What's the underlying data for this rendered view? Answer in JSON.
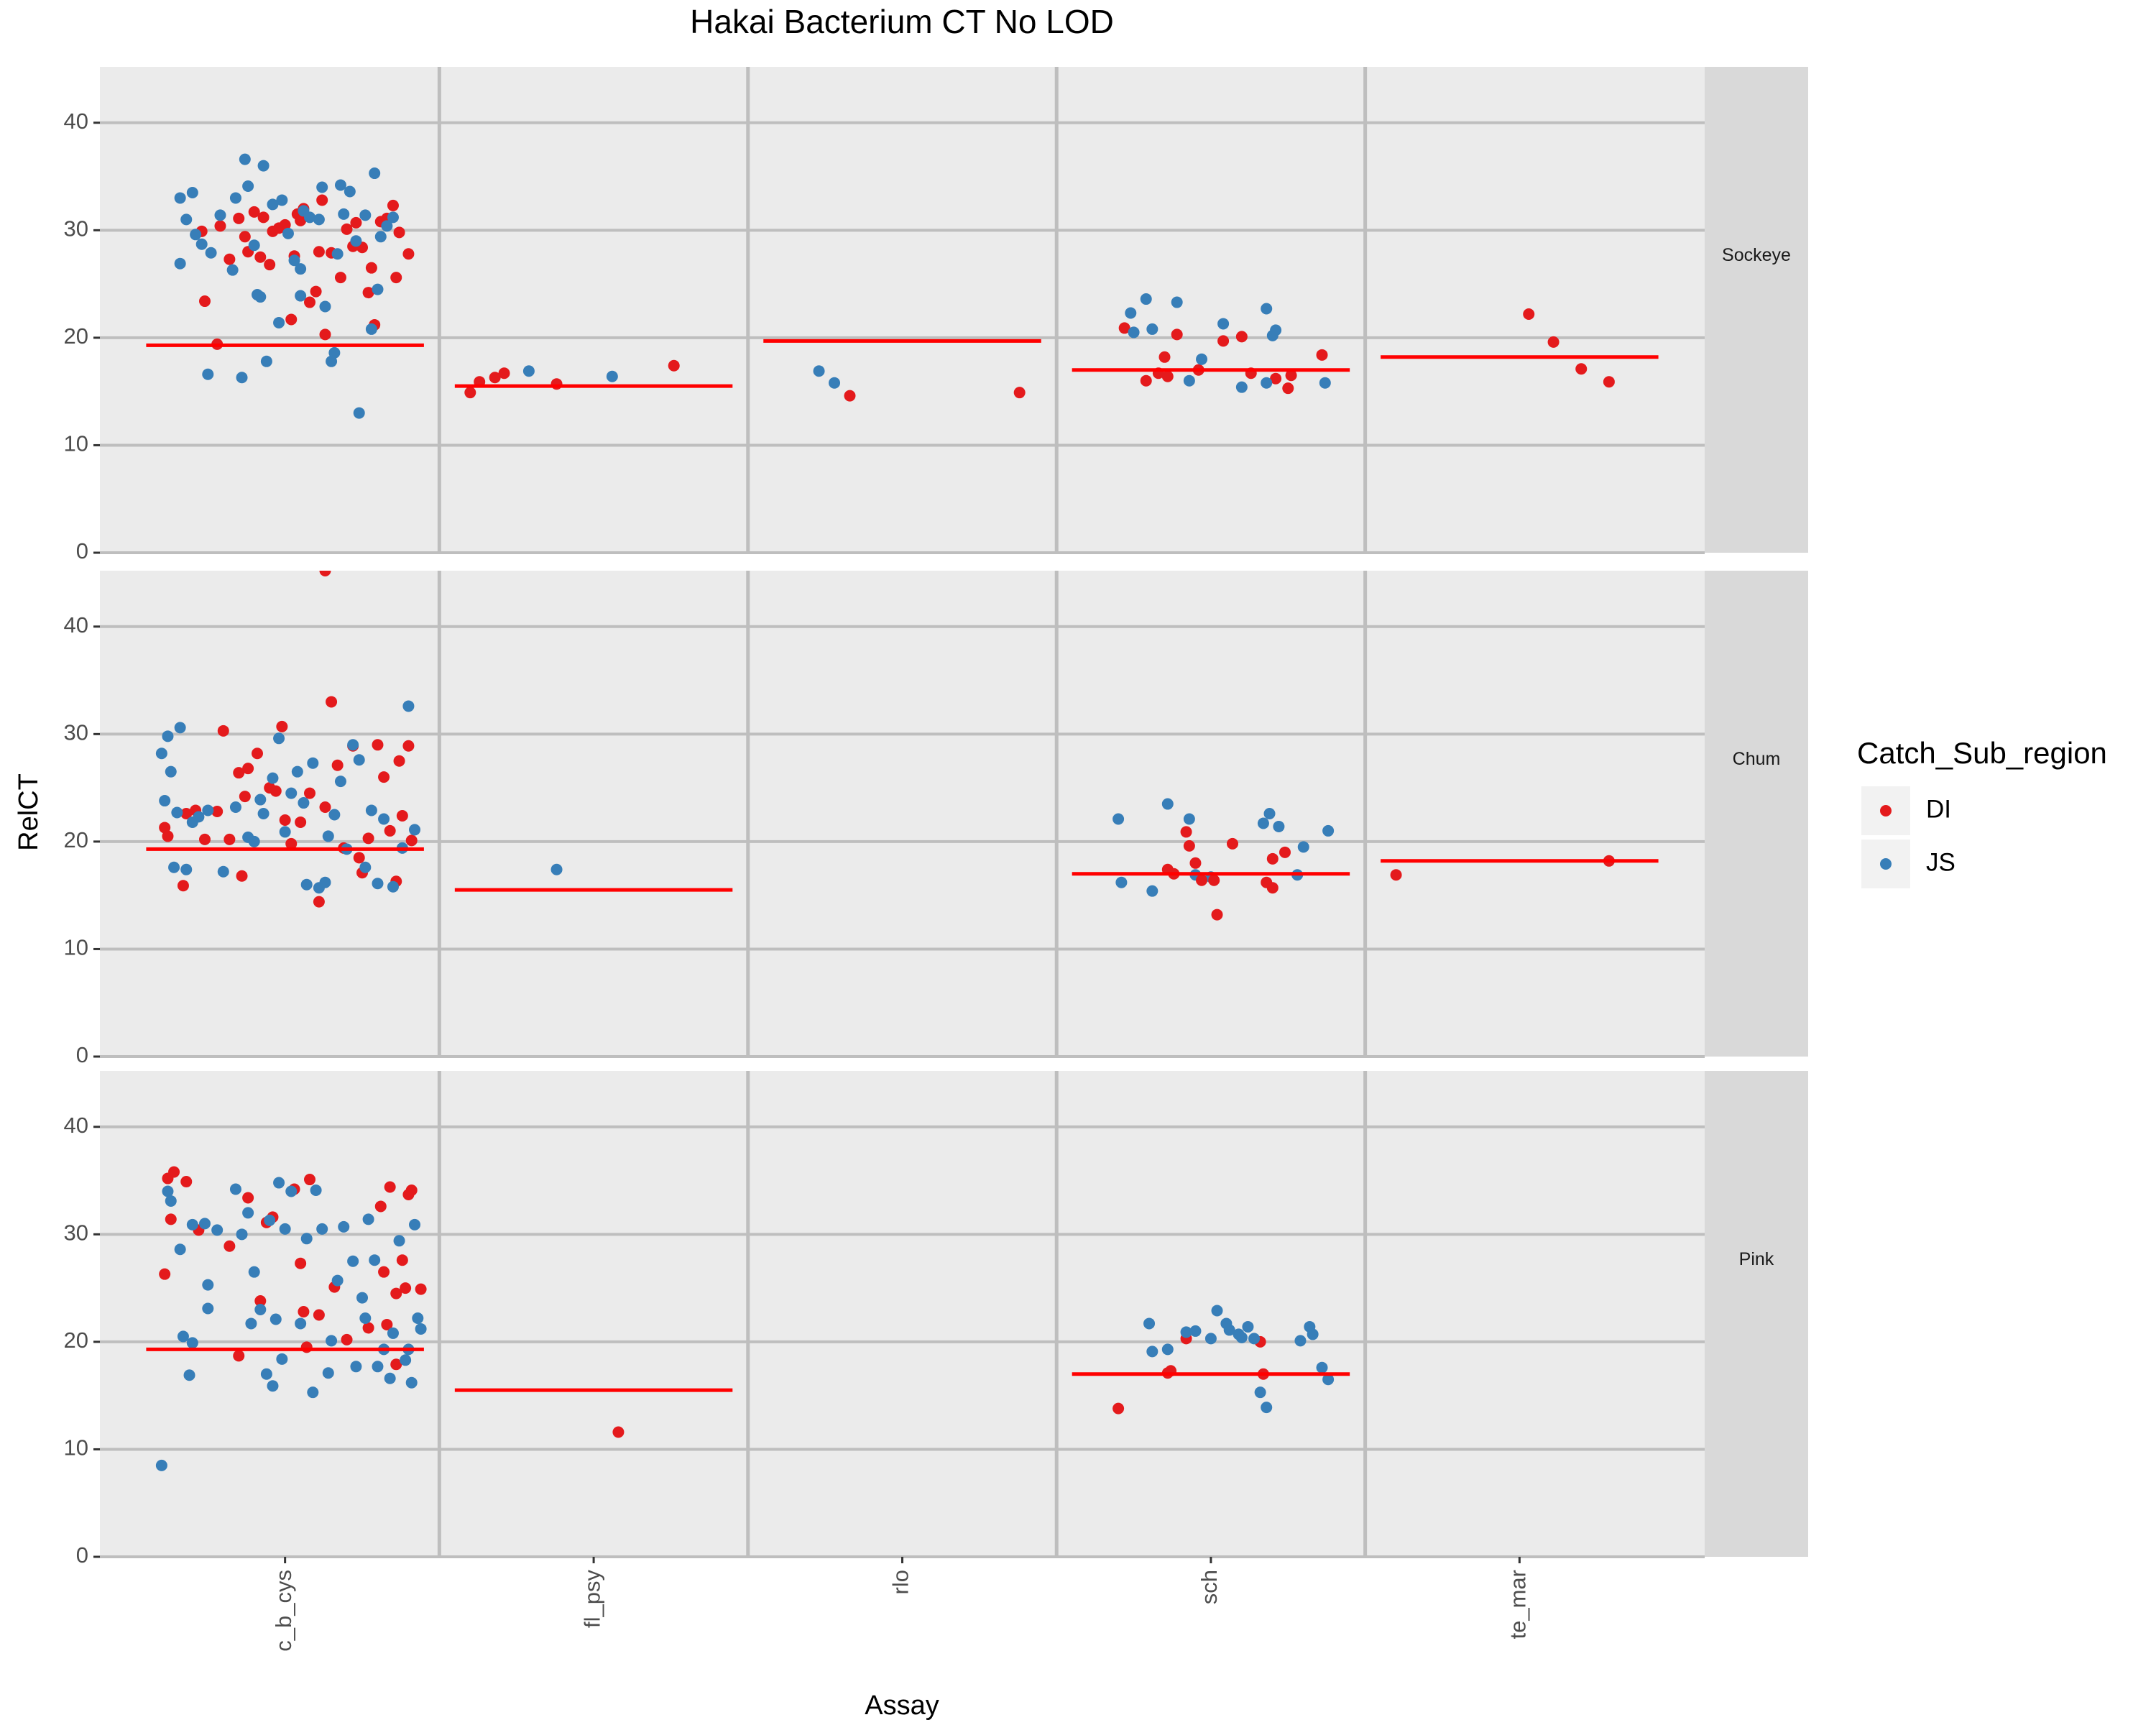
{
  "figure": {
    "title": "Hakai Bacterium CT No LOD",
    "x_label": "Assay",
    "y_label": "RelCT",
    "legend_title": "Catch_Sub_region",
    "legend": [
      {
        "name": "DI",
        "color": "#e41a1c"
      },
      {
        "name": "JS",
        "color": "#377eb8"
      }
    ],
    "categories": [
      "c_b_cys",
      "fl_psy",
      "rlo",
      "sch",
      "te_mar"
    ],
    "xlim": [
      0.4,
      5.6
    ],
    "median_color": "#ff0000"
  },
  "chart_data": [
    {
      "type": "scatter",
      "facet": "Sockeye",
      "ylim": [
        0,
        45.2
      ],
      "yticks": [
        0,
        10,
        20,
        30,
        40
      ],
      "medians": [
        19.3,
        15.5,
        19.7,
        17.0,
        18.2
      ],
      "series": [
        {
          "x": [
            0.73,
            0.74,
            0.78,
            0.85,
            0.88,
            0.9,
            0.92,
            0.95,
            0.98,
            1.0,
            1.02,
            1.03,
            1.05,
            1.06,
            1.08,
            1.1,
            1.12,
            1.13,
            1.15,
            1.18,
            1.2,
            1.22,
            1.25,
            1.27,
            1.28,
            1.29,
            1.31,
            1.33,
            1.35,
            1.36,
            1.37,
            1.4,
            0.82,
            0.87,
            0.96,
            1.04,
            1.11,
            1.23,
            0.79,
            0.93,
            1.6,
            1.63,
            1.68,
            1.71,
            1.88,
            2.26,
            2.83,
            3.38,
            3.72,
            3.79,
            3.83,
            3.85,
            3.86,
            3.89,
            3.96,
            4.04,
            4.1,
            4.13,
            4.21,
            4.25,
            4.26,
            4.36,
            5.03,
            5.11,
            5.2,
            5.29
          ],
          "values": [
            29.9,
            23.4,
            19.4,
            31.1,
            28.0,
            31.7,
            27.5,
            26.8,
            30.2,
            30.5,
            21.7,
            27.6,
            30.9,
            32.0,
            23.3,
            24.3,
            32.8,
            20.3,
            27.9,
            25.6,
            30.1,
            28.5,
            28.4,
            24.2,
            26.5,
            21.2,
            30.8,
            31.1,
            32.3,
            25.6,
            29.8,
            27.8,
            27.3,
            29.4,
            29.9,
            31.5,
            28.0,
            30.7,
            30.4,
            31.2,
            14.9,
            15.9,
            16.3,
            16.7,
            15.7,
            17.4,
            14.6,
            14.9,
            20.9,
            16.0,
            16.7,
            18.2,
            16.4,
            20.3,
            17.0,
            19.7,
            20.1,
            16.7,
            16.2,
            15.3,
            16.5,
            18.4,
            22.2,
            19.6,
            17.1,
            15.9
          ]
        },
        {
          "x": [
            0.66,
            0.66,
            0.68,
            0.71,
            0.73,
            0.75,
            0.76,
            0.79,
            0.83,
            0.84,
            0.86,
            0.88,
            0.9,
            0.91,
            0.92,
            0.93,
            0.94,
            0.96,
            0.98,
            0.99,
            1.01,
            1.03,
            1.05,
            1.06,
            1.08,
            1.11,
            1.12,
            1.13,
            1.15,
            1.16,
            1.17,
            1.19,
            1.21,
            1.23,
            1.24,
            1.26,
            1.28,
            1.29,
            1.3,
            1.31,
            1.33,
            1.35,
            0.87,
            0.7,
            1.18,
            1.05,
            1.79,
            2.06,
            2.73,
            2.78,
            3.74,
            3.75,
            3.79,
            3.81,
            3.89,
            3.93,
            3.97,
            4.04,
            4.1,
            4.18,
            4.2,
            4.21,
            4.18,
            4.37
          ],
          "values": [
            26.9,
            33.0,
            31.0,
            29.6,
            28.7,
            16.6,
            27.9,
            31.4,
            26.3,
            33.0,
            16.3,
            34.1,
            28.6,
            24.0,
            23.8,
            36.0,
            17.8,
            32.4,
            21.4,
            32.8,
            29.7,
            27.2,
            26.4,
            31.8,
            31.2,
            31.0,
            34.0,
            22.9,
            17.8,
            18.6,
            27.8,
            31.5,
            33.6,
            29.0,
            13.0,
            31.4,
            20.8,
            35.3,
            24.5,
            29.4,
            30.4,
            31.2,
            36.6,
            33.5,
            34.2,
            23.9,
            16.9,
            16.4,
            16.9,
            15.8,
            22.3,
            20.5,
            23.6,
            20.8,
            23.3,
            16.0,
            18.0,
            21.3,
            15.4,
            22.7,
            20.2,
            20.7,
            15.8,
            15.8
          ]
        }
      ]
    },
    {
      "type": "scatter",
      "facet": "Chum",
      "ylim": [
        0,
        45.2
      ],
      "yticks": [
        0,
        10,
        20,
        30,
        40
      ],
      "medians": [
        19.3,
        15.5,
        null,
        17.0,
        18.2
      ],
      "series": [
        {
          "x": [
            0.61,
            0.62,
            0.68,
            0.67,
            0.71,
            0.74,
            0.8,
            0.82,
            0.85,
            0.86,
            0.87,
            0.88,
            0.91,
            0.95,
            0.97,
            0.99,
            1.02,
            1.05,
            1.08,
            1.11,
            1.13,
            1.15,
            1.17,
            1.19,
            1.22,
            1.25,
            1.27,
            1.3,
            1.32,
            1.34,
            1.37,
            1.38,
            1.36,
            1.4,
            1.41,
            1.13,
            1.0,
            0.78,
            1.24
          ],
          "values": [
            21.3,
            20.5,
            22.6,
            15.9,
            22.9,
            20.2,
            30.3,
            20.2,
            26.4,
            16.8,
            24.2,
            26.8,
            28.2,
            25.0,
            24.7,
            30.7,
            19.8,
            21.8,
            24.5,
            14.4,
            23.2,
            33.0,
            27.1,
            19.4,
            28.9,
            17.1,
            20.3,
            29.0,
            26.0,
            21.0,
            27.5,
            22.4,
            16.3,
            28.9,
            20.1,
            45.2,
            22.0,
            22.8,
            18.5
          ]
        },
        {
          "x": [
            0.6,
            0.61,
            0.62,
            0.63,
            0.64,
            0.65,
            0.66,
            0.68,
            0.7,
            0.72,
            0.75,
            0.8,
            0.84,
            0.88,
            0.9,
            0.93,
            0.96,
            0.98,
            1.0,
            1.02,
            1.04,
            1.06,
            1.07,
            1.09,
            1.11,
            1.13,
            1.16,
            1.18,
            1.2,
            1.22,
            1.24,
            1.26,
            1.28,
            1.3,
            1.32,
            1.35,
            1.38,
            1.4,
            1.42,
            0.92,
            1.14,
            1.88,
            3.7,
            3.71,
            3.81,
            3.86,
            3.93,
            3.95,
            4.0,
            4.17,
            4.19,
            4.22,
            4.28,
            4.3,
            4.38
          ],
          "values": [
            28.2,
            23.8,
            29.8,
            26.5,
            17.6,
            22.7,
            30.6,
            17.4,
            21.8,
            22.3,
            22.9,
            17.2,
            23.2,
            20.4,
            20.0,
            22.6,
            25.9,
            29.6,
            20.9,
            24.5,
            26.5,
            23.6,
            16.0,
            27.3,
            15.7,
            16.2,
            22.5,
            25.6,
            19.3,
            29.0,
            27.6,
            17.6,
            22.9,
            16.1,
            22.1,
            15.8,
            19.4,
            32.6,
            21.1,
            23.9,
            20.5,
            17.4,
            22.1,
            16.2,
            15.4,
            23.5,
            22.1,
            16.9,
            16.7,
            21.7,
            22.6,
            21.4,
            16.9,
            19.5,
            21.0
          ]
        },
        {
          "x": [
            3.92,
            3.93,
            3.95,
            3.86,
            3.88,
            3.97,
            4.01,
            4.02,
            4.07,
            4.18,
            4.2,
            4.2,
            4.24,
            4.6,
            5.29
          ],
          "values": [
            20.9,
            19.6,
            18.0,
            17.4,
            17.0,
            16.4,
            16.4,
            13.2,
            19.8,
            16.2,
            18.4,
            15.7,
            19.0,
            16.9,
            18.2
          ],
          "group": 0
        }
      ]
    },
    {
      "type": "scatter",
      "facet": "Pink",
      "ylim": [
        0,
        45.2
      ],
      "yticks": [
        0,
        10,
        20,
        30,
        40
      ],
      "medians": [
        19.3,
        15.5,
        null,
        17.0,
        null
      ],
      "series": [
        {
          "x": [
            0.61,
            0.62,
            0.63,
            0.64,
            0.68,
            0.72,
            0.82,
            0.85,
            0.88,
            0.92,
            0.94,
            0.96,
            1.03,
            1.06,
            1.07,
            1.08,
            1.11,
            1.16,
            1.2,
            1.27,
            1.31,
            1.32,
            1.34,
            1.33,
            1.36,
            1.38,
            1.39,
            1.4,
            1.41,
            1.44,
            1.36,
            1.05,
            2.08,
            3.7,
            3.87,
            3.86,
            3.92,
            4.16,
            4.17
          ],
          "values": [
            26.3,
            35.2,
            31.4,
            35.8,
            34.9,
            30.4,
            28.9,
            18.7,
            33.4,
            23.8,
            31.1,
            31.6,
            34.2,
            22.8,
            19.5,
            35.1,
            22.5,
            25.1,
            20.2,
            21.3,
            32.6,
            26.5,
            34.4,
            21.6,
            24.5,
            27.6,
            25.0,
            33.7,
            34.1,
            24.9,
            17.9,
            27.3,
            11.6,
            13.8,
            17.3,
            17.1,
            20.3,
            20.0,
            17.0
          ]
        },
        {
          "x": [
            0.6,
            0.62,
            0.63,
            0.66,
            0.67,
            0.69,
            0.7,
            0.7,
            0.74,
            0.75,
            0.75,
            0.78,
            0.84,
            0.86,
            0.88,
            0.89,
            0.92,
            0.94,
            0.96,
            0.97,
            0.98,
            0.99,
            1.0,
            1.02,
            1.05,
            1.07,
            1.09,
            1.12,
            1.14,
            1.15,
            1.17,
            1.19,
            1.22,
            1.23,
            1.25,
            1.26,
            1.27,
            1.29,
            1.3,
            1.32,
            1.34,
            1.35,
            1.37,
            1.39,
            1.41,
            1.42,
            1.43,
            1.44,
            1.4,
            0.9,
            0.95,
            1.1,
            3.8,
            3.81,
            3.86,
            3.92,
            3.95,
            4.02,
            4.05,
            4.06,
            4.09,
            4.12,
            4.14,
            4.16,
            4.18,
            4.29,
            4.32,
            4.33,
            4.36,
            4.38,
            4.0,
            4.1
          ],
          "values": [
            8.5,
            34.0,
            33.1,
            28.6,
            20.5,
            16.9,
            30.9,
            19.9,
            31.0,
            25.3,
            23.1,
            30.4,
            34.2,
            30.0,
            32.0,
            21.7,
            23.0,
            17.0,
            15.9,
            22.1,
            34.8,
            18.4,
            30.5,
            34.0,
            21.7,
            29.6,
            15.3,
            30.5,
            17.1,
            20.1,
            25.7,
            30.7,
            27.5,
            17.7,
            24.1,
            22.2,
            31.4,
            27.6,
            17.7,
            19.3,
            16.6,
            20.8,
            29.4,
            18.3,
            16.2,
            30.9,
            22.2,
            21.2,
            19.3,
            26.5,
            31.3,
            34.1,
            21.7,
            19.1,
            19.3,
            20.9,
            21.0,
            22.9,
            21.7,
            21.1,
            20.7,
            21.4,
            20.3,
            15.3,
            13.9,
            20.1,
            21.4,
            20.7,
            17.6,
            16.5,
            20.3,
            20.4
          ]
        }
      ]
    }
  ]
}
